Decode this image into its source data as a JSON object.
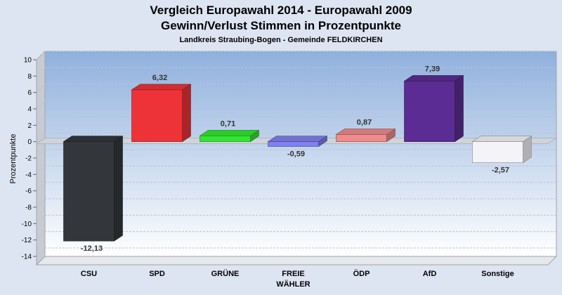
{
  "chart_data": {
    "type": "bar",
    "title": "Vergleich Europawahl 2014 - Europawahl 2009",
    "subtitle": "Gewinn/Verlust Stimmen in Prozentpunkte",
    "caption": "Landkreis Straubing-Bogen - Gemeinde FELDKIRCHEN",
    "ylabel": "Prozentpunkte",
    "xlabel": "",
    "ylim": [
      -14,
      10
    ],
    "yticks": [
      10,
      8,
      6,
      4,
      2,
      0,
      -2,
      -4,
      -6,
      -8,
      -10,
      -12,
      -14
    ],
    "grid": true,
    "categories": [
      {
        "label": "CSU",
        "label_line2": ""
      },
      {
        "label": "SPD",
        "label_line2": ""
      },
      {
        "label": "GRÜNE",
        "label_line2": ""
      },
      {
        "label": "FREIE",
        "label_line2": "WÄHLER"
      },
      {
        "label": "ÖDP",
        "label_line2": ""
      },
      {
        "label": "AfD",
        "label_line2": ""
      },
      {
        "label": "Sonstige",
        "label_line2": ""
      }
    ],
    "values": [
      -12.13,
      6.32,
      0.71,
      -0.59,
      0.87,
      7.39,
      -2.57
    ],
    "value_labels": [
      "-12,13",
      "6,32",
      "0,71",
      "-0,59",
      "0,87",
      "7,39",
      "-2,57"
    ],
    "colors": [
      "#33373c",
      "#ee3338",
      "#33e533",
      "#8080f0",
      "#f08c8c",
      "#5b2c93",
      "#f4f4f8"
    ]
  }
}
